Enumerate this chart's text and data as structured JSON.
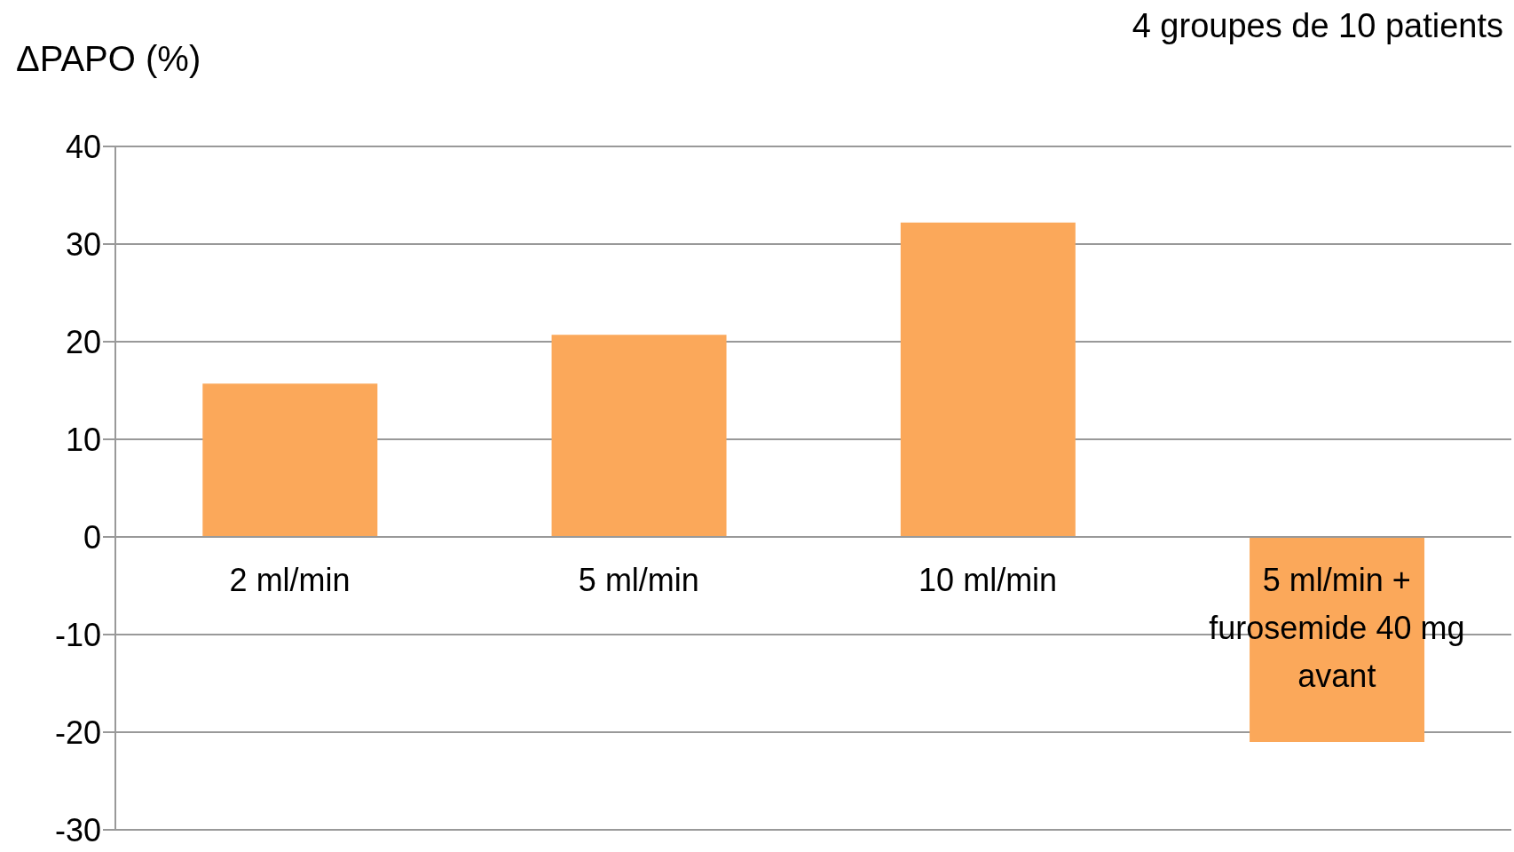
{
  "chart_data": {
    "type": "bar",
    "ylabel": "ΔPAPO (%)",
    "annotations": [
      "4 groupes de 10 patients"
    ],
    "categories": [
      "2 ml/min",
      "5 ml/min",
      "10 ml/min",
      "5 ml/min + furosemide 40 mg avant"
    ],
    "values": [
      15.7,
      20.7,
      32.2,
      -21.0
    ],
    "color": "#fba85a",
    "ylim": [
      -30,
      40
    ],
    "yticks": [
      -30,
      -20,
      -10,
      0,
      10,
      20,
      30,
      40
    ],
    "grid": "y"
  }
}
